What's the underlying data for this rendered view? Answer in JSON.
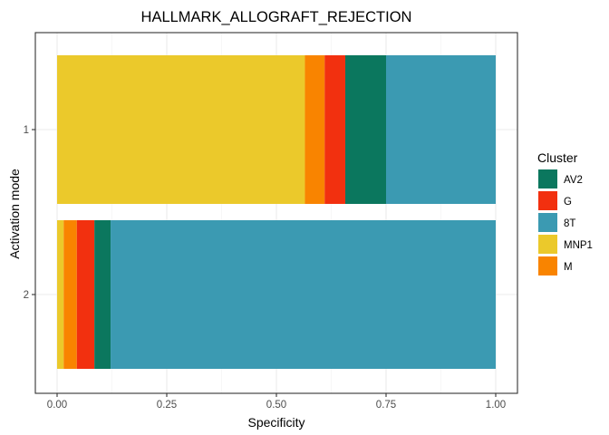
{
  "chart_data": {
    "type": "bar",
    "orientation": "horizontal",
    "stacked": true,
    "title": "HALLMARK_ALLOGRAFT_REJECTION",
    "xlabel": "Specificity",
    "ylabel": "Activation mode",
    "xlim": [
      0,
      1
    ],
    "x_ticks": [
      "0.00",
      "0.25",
      "0.50",
      "0.75",
      "1.00"
    ],
    "categories": [
      "1",
      "2"
    ],
    "grid": true,
    "legend_position": "right",
    "legend_title": "Cluster",
    "legend_items": [
      "AV2",
      "G",
      "8T",
      "MNP1",
      "M"
    ],
    "stack_order": [
      "MNP1",
      "M",
      "G",
      "AV2",
      "8T"
    ],
    "series": [
      {
        "name": "MNP1",
        "color": "#EBC92B",
        "values": [
          0.565,
          0.015
        ]
      },
      {
        "name": "M",
        "color": "#F98400",
        "values": [
          0.045,
          0.03
        ]
      },
      {
        "name": "G",
        "color": "#F2300F",
        "values": [
          0.047,
          0.04
        ]
      },
      {
        "name": "AV2",
        "color": "#0B775E",
        "values": [
          0.093,
          0.037
        ]
      },
      {
        "name": "8T",
        "color": "#3B9AB2",
        "values": [
          0.25,
          0.878
        ]
      }
    ]
  }
}
